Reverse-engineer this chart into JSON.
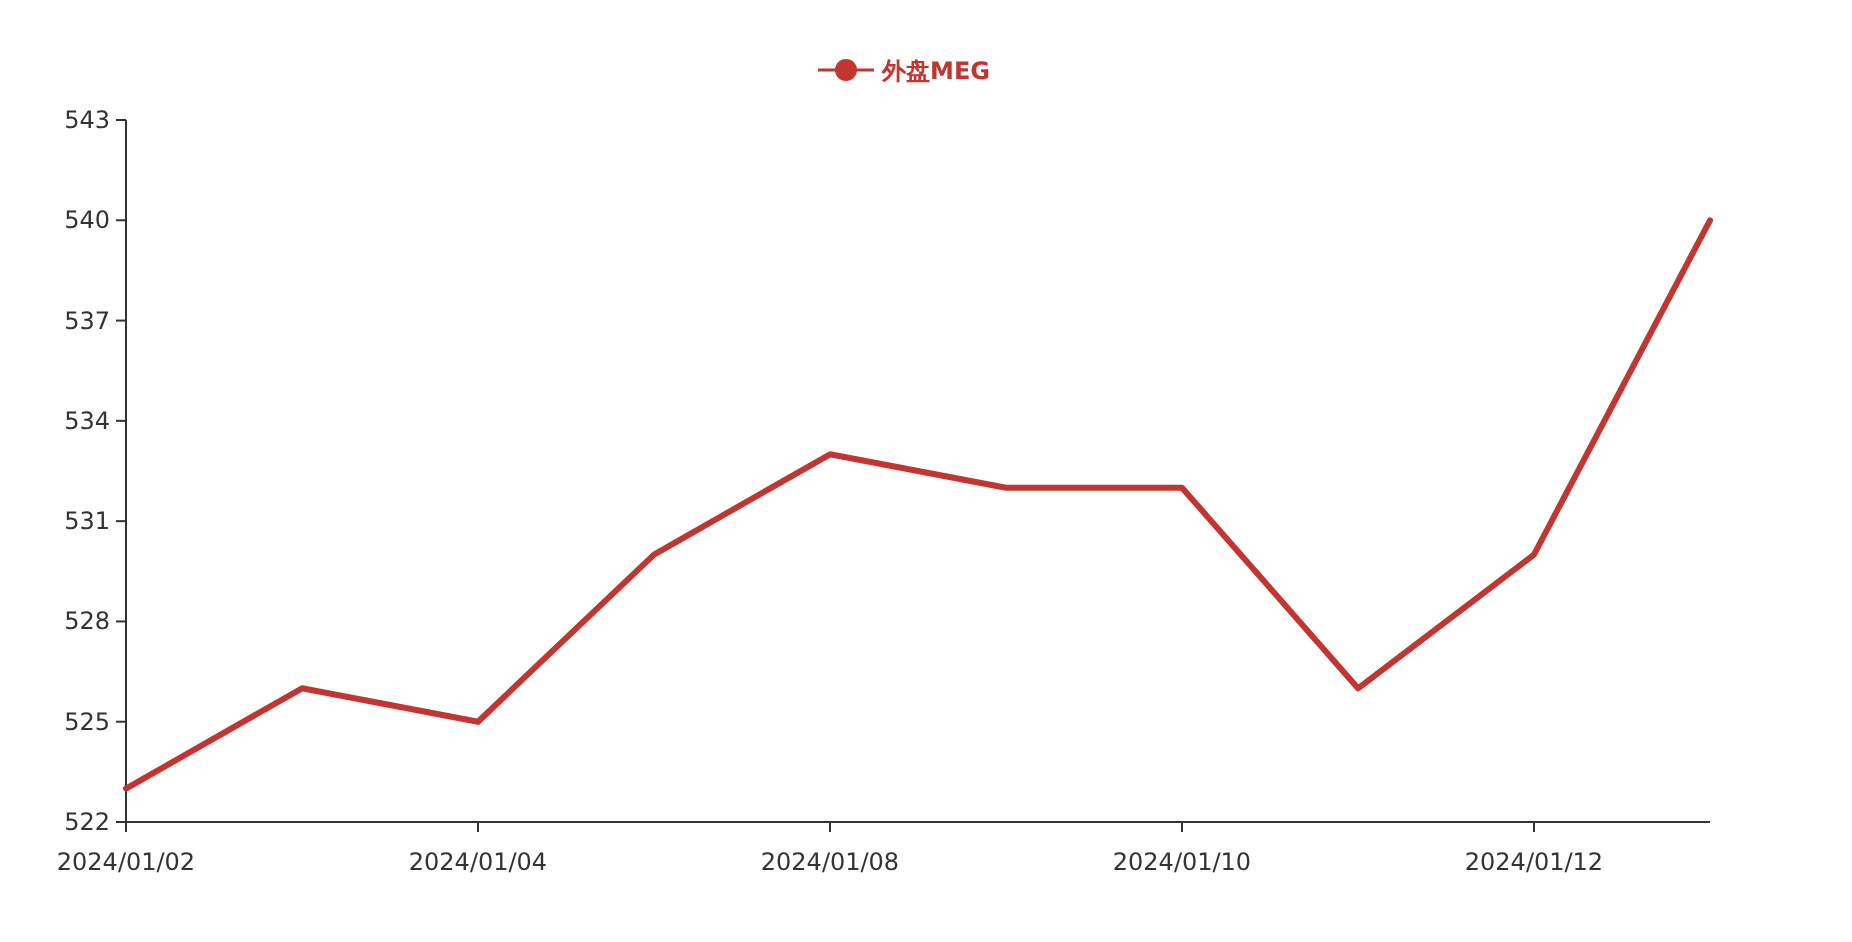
{
  "chart_data": {
    "type": "line",
    "categories": [
      "2024/01/02",
      null,
      "2024/01/04",
      null,
      "2024/01/08",
      null,
      "2024/01/10",
      null,
      "2024/01/12",
      null
    ],
    "series": [
      {
        "name": "外盘MEG",
        "color": "#c23531",
        "values": [
          523,
          526,
          525,
          530,
          533,
          532,
          532,
          526,
          530,
          540
        ]
      }
    ],
    "ylim": [
      522,
      543
    ],
    "yticks": [
      522,
      525,
      528,
      531,
      534,
      537,
      540,
      543
    ],
    "legend": "top",
    "grid": false
  }
}
